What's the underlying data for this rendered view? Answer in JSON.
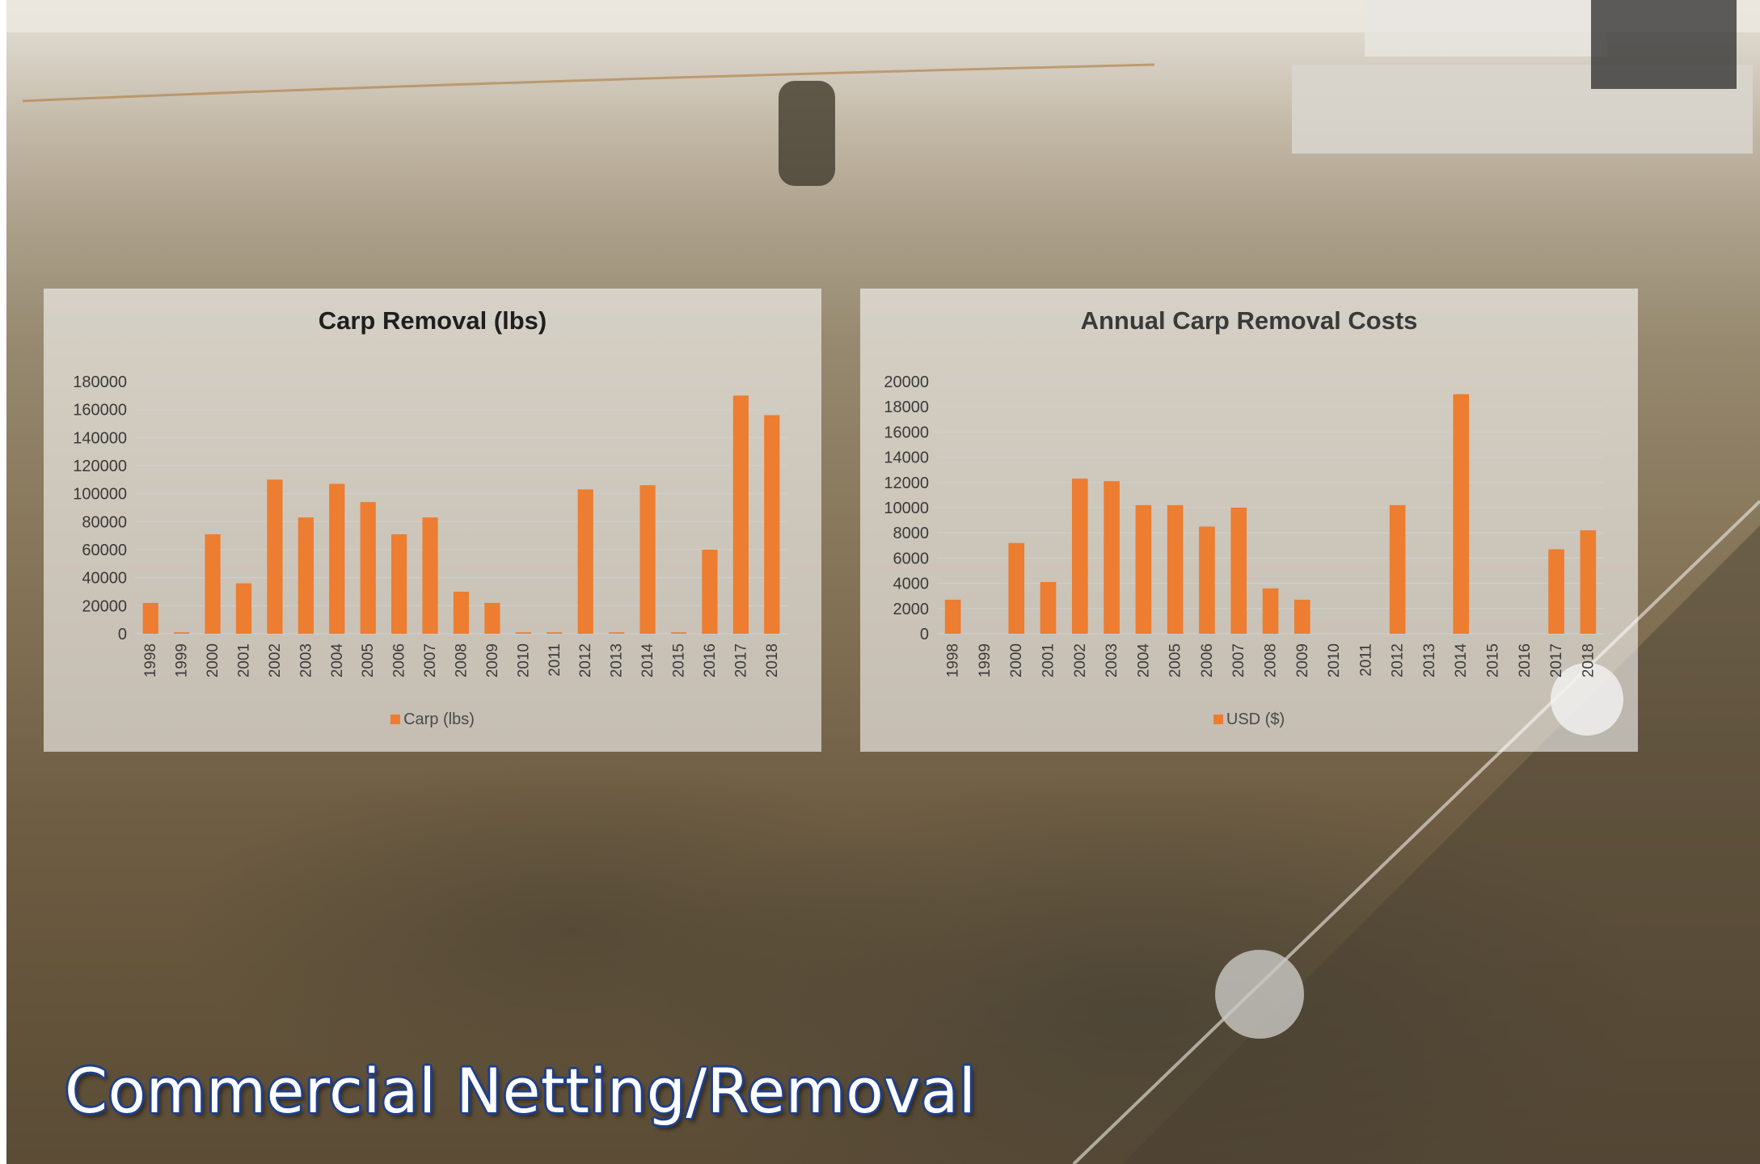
{
  "caption": "Commercial Netting/Removal",
  "chart_data": [
    {
      "type": "bar",
      "title": "Carp Removal (lbs)",
      "categories": [
        "1998",
        "1999",
        "2000",
        "2001",
        "2002",
        "2003",
        "2004",
        "2005",
        "2006",
        "2007",
        "2008",
        "2009",
        "2010",
        "2011",
        "2012",
        "2013",
        "2014",
        "2015",
        "2016",
        "2017",
        "2018"
      ],
      "series": [
        {
          "name": "Carp (lbs)",
          "values": [
            22000,
            1000,
            71000,
            36000,
            110000,
            83000,
            107000,
            94000,
            71000,
            83000,
            30000,
            22000,
            1000,
            1000,
            103000,
            1000,
            106000,
            1000,
            60000,
            170000,
            156000
          ]
        }
      ],
      "ylim": [
        0,
        180000
      ],
      "yticks": [
        0,
        20000,
        40000,
        60000,
        80000,
        100000,
        120000,
        140000,
        160000,
        180000
      ],
      "grid": true,
      "legend": "bottom",
      "color": "#ed7d31"
    },
    {
      "type": "bar",
      "title": "Annual Carp Removal Costs",
      "categories": [
        "1998",
        "1999",
        "2000",
        "2001",
        "2002",
        "2003",
        "2004",
        "2005",
        "2006",
        "2007",
        "2008",
        "2009",
        "2010",
        "2011",
        "2012",
        "2013",
        "2014",
        "2015",
        "2016",
        "2017",
        "2018"
      ],
      "series": [
        {
          "name": "USD ($)",
          "values": [
            2700,
            0,
            7200,
            4100,
            12300,
            12100,
            10200,
            10200,
            8500,
            10000,
            3600,
            2700,
            0,
            0,
            10200,
            0,
            19000,
            0,
            0,
            6700,
            8200
          ]
        }
      ],
      "ylim": [
        0,
        20000
      ],
      "yticks": [
        0,
        2000,
        4000,
        6000,
        8000,
        10000,
        12000,
        14000,
        16000,
        18000,
        20000
      ],
      "grid": true,
      "legend": "bottom",
      "color": "#ed7d31"
    }
  ]
}
